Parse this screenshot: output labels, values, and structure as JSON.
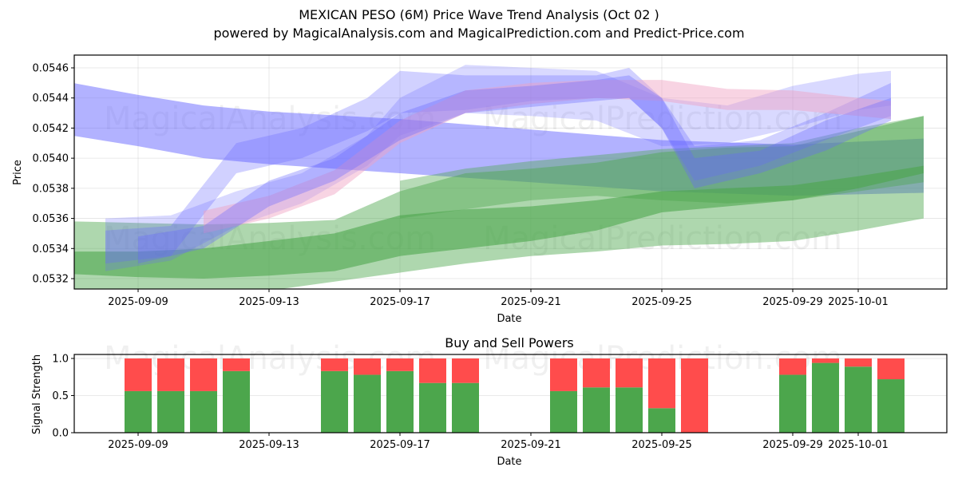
{
  "title": "MEXICAN PESO (6M) Price Wave Trend Analysis (Oct 02 )",
  "subtitle": "powered by MagicalAnalysis.com and MagicalPrediction.com and Predict-Price.com",
  "watermarks": [
    "MagicalAnalysis.com",
    "MagicalPrediction.com"
  ],
  "colors": {
    "buy": "#4ca64c",
    "sell": "#ff4c4c",
    "blue_band": "#6666ff",
    "green_band": "#4ca64c",
    "pink_band": "#f0a0c0"
  },
  "chart_data": [
    {
      "type": "area",
      "title": "",
      "xlabel": "Date",
      "ylabel": "Price",
      "ylim": [
        0.05314,
        0.05468
      ],
      "xlim": [
        "2025-09-06T16:00",
        "2025-10-04T12:00"
      ],
      "grid": true,
      "yticks": [
        "0.0532",
        "0.0534",
        "0.0536",
        "0.0538",
        "0.0540",
        "0.0542",
        "0.0544",
        "0.0546"
      ],
      "xticks": [
        "2025-09-09",
        "2025-09-13",
        "2025-09-17",
        "2025-09-21",
        "2025-09-25",
        "2025-09-29",
        "2025-10-01"
      ],
      "series": [
        {
          "name": "blue-long-band",
          "color": "blue",
          "opacity": 0.5,
          "x": [
            "2025-09-07",
            "2025-09-09",
            "2025-09-11",
            "2025-09-13",
            "2025-09-17",
            "2025-09-21",
            "2025-09-25",
            "2025-09-29",
            "2025-10-03"
          ],
          "upper": [
            0.0545,
            0.05442,
            0.05435,
            0.05431,
            0.05426,
            0.05419,
            0.05412,
            0.05409,
            0.05413
          ],
          "lower": [
            0.05415,
            0.05408,
            0.054,
            0.05396,
            0.0539,
            0.05384,
            0.05378,
            0.05375,
            0.05377
          ]
        },
        {
          "name": "green-wide-band",
          "color": "green",
          "opacity": 0.45,
          "x": [
            "2025-09-07",
            "2025-09-09",
            "2025-09-11",
            "2025-09-13",
            "2025-09-15",
            "2025-09-17",
            "2025-09-19",
            "2025-09-21",
            "2025-09-23",
            "2025-09-25",
            "2025-09-27",
            "2025-09-29",
            "2025-10-01",
            "2025-10-03"
          ],
          "upper": [
            0.05358,
            0.05357,
            0.05356,
            0.05357,
            0.05359,
            0.05378,
            0.0539,
            0.05393,
            0.05397,
            0.05404,
            0.05407,
            0.05408,
            0.05418,
            0.05428
          ],
          "lower": [
            0.0531,
            0.05305,
            0.05307,
            0.05312,
            0.05318,
            0.05324,
            0.0533,
            0.05335,
            0.05338,
            0.05342,
            0.05343,
            0.05345,
            0.05352,
            0.0536
          ]
        },
        {
          "name": "green-core-band",
          "color": "green",
          "opacity": 0.6,
          "x": [
            "2025-09-07",
            "2025-09-09",
            "2025-09-11",
            "2025-09-13",
            "2025-09-15",
            "2025-09-17",
            "2025-09-19",
            "2025-09-21",
            "2025-09-23",
            "2025-09-25",
            "2025-09-27",
            "2025-09-29",
            "2025-10-01",
            "2025-10-03"
          ],
          "upper": [
            0.05338,
            0.05338,
            0.0534,
            0.05345,
            0.0535,
            0.05362,
            0.05366,
            0.05368,
            0.05372,
            0.05378,
            0.0538,
            0.05382,
            0.05388,
            0.05395
          ],
          "lower": [
            0.05323,
            0.05321,
            0.0532,
            0.05322,
            0.05325,
            0.05335,
            0.0534,
            0.05345,
            0.05352,
            0.05364,
            0.05368,
            0.05372,
            0.0538,
            0.0539
          ]
        },
        {
          "name": "teal-rising-band",
          "color": "green",
          "opacity": 0.4,
          "x": [
            "2025-09-17",
            "2025-09-19",
            "2025-09-21",
            "2025-09-23",
            "2025-09-25",
            "2025-09-27",
            "2025-09-29",
            "2025-10-01",
            "2025-10-03"
          ],
          "upper": [
            0.05385,
            0.05393,
            0.05398,
            0.05402,
            0.05406,
            0.05408,
            0.0541,
            0.0542,
            0.05428
          ],
          "lower": [
            0.0536,
            0.05366,
            0.05372,
            0.05375,
            0.05372,
            0.0537,
            0.05372,
            0.05378,
            0.05384
          ]
        },
        {
          "name": "blue-wave-1",
          "color": "blue",
          "opacity": 0.3,
          "x": [
            "2025-09-08",
            "2025-09-10",
            "2025-09-12",
            "2025-09-14",
            "2025-09-16",
            "2025-09-17",
            "2025-09-19",
            "2025-09-21",
            "2025-09-23",
            "2025-09-24",
            "2025-09-25",
            "2025-09-26",
            "2025-09-28",
            "2025-09-30",
            "2025-10-02"
          ],
          "upper": [
            0.05352,
            0.05355,
            0.0541,
            0.0542,
            0.0544,
            0.05458,
            0.05455,
            0.05455,
            0.05455,
            0.0546,
            0.0544,
            0.05408,
            0.05412,
            0.0543,
            0.0545
          ],
          "lower": [
            0.0533,
            0.05335,
            0.0539,
            0.054,
            0.05418,
            0.0543,
            0.05432,
            0.05438,
            0.0544,
            0.0544,
            0.0542,
            0.05385,
            0.05395,
            0.05412,
            0.05428
          ]
        },
        {
          "name": "blue-wave-2",
          "color": "blue",
          "opacity": 0.25,
          "x": [
            "2025-09-08",
            "2025-09-10",
            "2025-09-12",
            "2025-09-14",
            "2025-09-16",
            "2025-09-17",
            "2025-09-19",
            "2025-09-21",
            "2025-09-23",
            "2025-09-25",
            "2025-09-27",
            "2025-09-29",
            "2025-10-01",
            "2025-10-02"
          ],
          "upper": [
            0.0536,
            0.05362,
            0.05378,
            0.0539,
            0.05415,
            0.0544,
            0.05462,
            0.0546,
            0.05458,
            0.0544,
            0.05435,
            0.05448,
            0.05456,
            0.05458
          ],
          "lower": [
            0.05325,
            0.05332,
            0.05355,
            0.0537,
            0.05395,
            0.05415,
            0.0543,
            0.05428,
            0.05425,
            0.05408,
            0.0541,
            0.0542,
            0.05432,
            0.05435
          ]
        },
        {
          "name": "pink-wave",
          "color": "pink",
          "opacity": 0.45,
          "x": [
            "2025-09-11",
            "2025-09-13",
            "2025-09-15",
            "2025-09-17",
            "2025-09-19",
            "2025-09-21",
            "2025-09-23",
            "2025-09-25",
            "2025-09-27",
            "2025-09-29",
            "2025-10-01",
            "2025-10-02"
          ],
          "upper": [
            0.05365,
            0.05375,
            0.05392,
            0.05425,
            0.05445,
            0.0545,
            0.05452,
            0.05452,
            0.05446,
            0.05445,
            0.0544,
            0.05438
          ],
          "lower": [
            0.0535,
            0.0536,
            0.05376,
            0.0541,
            0.0543,
            0.05436,
            0.0544,
            0.05438,
            0.05432,
            0.05432,
            0.05428,
            0.05426
          ]
        },
        {
          "name": "purple-wave",
          "color": "blue",
          "opacity": 0.35,
          "x": [
            "2025-09-09",
            "2025-09-11",
            "2025-09-13",
            "2025-09-15",
            "2025-09-17",
            "2025-09-19",
            "2025-09-21",
            "2025-09-23",
            "2025-09-24",
            "2025-09-25",
            "2025-09-26",
            "2025-09-28",
            "2025-09-30",
            "2025-10-02"
          ],
          "upper": [
            0.05348,
            0.05355,
            0.05385,
            0.054,
            0.0543,
            0.05445,
            0.05448,
            0.05452,
            0.05455,
            0.0544,
            0.054,
            0.05405,
            0.05425,
            0.0544
          ],
          "lower": [
            0.0533,
            0.0534,
            0.05368,
            0.05385,
            0.05412,
            0.0543,
            0.05434,
            0.05438,
            0.0544,
            0.0542,
            0.0538,
            0.0539,
            0.05405,
            0.05425
          ]
        }
      ]
    },
    {
      "type": "bar",
      "title": "Buy and Sell Powers",
      "xlabel": "Date",
      "ylabel": "Signal Strength",
      "ylim": [
        0,
        1.05
      ],
      "yticks": [
        "0.0",
        "0.5",
        "1.0"
      ],
      "xticks": [
        "2025-09-09",
        "2025-09-13",
        "2025-09-17",
        "2025-09-21",
        "2025-09-25",
        "2025-09-29",
        "2025-10-01"
      ],
      "grid": true,
      "categories": [
        "2025-09-09",
        "2025-09-10",
        "2025-09-11",
        "2025-09-12",
        "2025-09-15",
        "2025-09-16",
        "2025-09-17",
        "2025-09-18",
        "2025-09-19",
        "2025-09-22",
        "2025-09-23",
        "2025-09-24",
        "2025-09-25",
        "2025-09-26",
        "2025-09-29",
        "2025-09-30",
        "2025-10-01",
        "2025-10-02"
      ],
      "series": [
        {
          "name": "Buy",
          "color": "buy",
          "values": [
            0.56,
            0.56,
            0.56,
            0.83,
            0.83,
            0.78,
            0.83,
            0.67,
            0.67,
            0.56,
            0.61,
            0.61,
            0.33,
            0.0,
            0.78,
            0.94,
            0.89,
            0.72
          ]
        },
        {
          "name": "Sell",
          "color": "sell",
          "values": [
            0.44,
            0.44,
            0.44,
            0.17,
            0.17,
            0.22,
            0.17,
            0.33,
            0.33,
            0.44,
            0.39,
            0.39,
            0.67,
            1.0,
            0.22,
            0.06,
            0.11,
            0.28
          ]
        }
      ]
    }
  ]
}
